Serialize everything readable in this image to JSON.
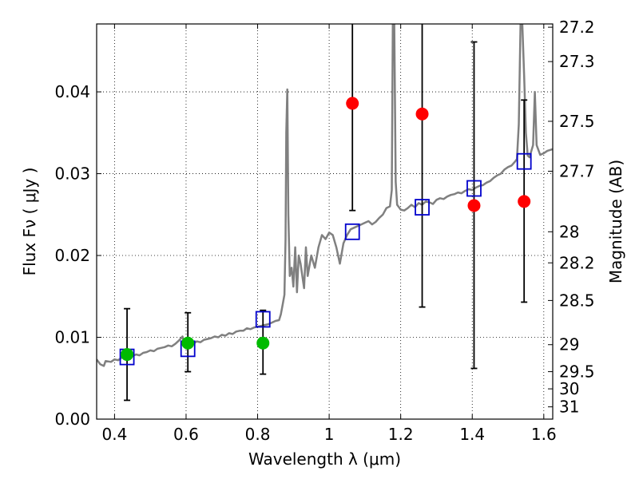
{
  "chart_data": {
    "type": "scatter",
    "xlabel": "Wavelength  λ (μm)",
    "ylabel_left": "Flux  Fν  ( μJy )",
    "ylabel_right": "Magnitude (AB)",
    "xlim": [
      0.35,
      1.625
    ],
    "ylim": [
      0.0,
      0.0483
    ],
    "x_ticks": [
      0.4,
      0.6,
      0.8,
      1.0,
      1.2,
      1.4,
      1.6
    ],
    "x_tick_labels": [
      "0.4",
      "0.6",
      "0.8",
      "1",
      "1.2",
      "1.4",
      "1.6"
    ],
    "y_ticks": [
      0.0,
      0.01,
      0.02,
      0.03,
      0.04
    ],
    "y_tick_labels": [
      "0.00",
      "0.01",
      "0.02",
      "0.03",
      "0.04"
    ],
    "right_ticks": [
      {
        "flux": 0.0479,
        "label": "27.2"
      },
      {
        "flux": 0.0437,
        "label": "27.3"
      },
      {
        "flux": 0.0364,
        "label": "27.5"
      },
      {
        "flux": 0.0303,
        "label": "27.7"
      },
      {
        "flux": 0.0229,
        "label": "28"
      },
      {
        "flux": 0.0191,
        "label": "28.2"
      },
      {
        "flux": 0.0145,
        "label": "28.5"
      },
      {
        "flux": 0.0091,
        "label": "29"
      },
      {
        "flux": 0.0058,
        "label": "29.5"
      },
      {
        "flux": 0.0037,
        "label": "30"
      },
      {
        "flux": 0.0015,
        "label": "31"
      }
    ],
    "grid": true,
    "colors": {
      "model": "#808080",
      "model_photometry": "#0000cc",
      "detections": "#00bb00",
      "upper_constraints": "#ff0000",
      "errorbars": "#000000"
    },
    "series": [
      {
        "kind": "line",
        "points": [
          [
            0.35,
            0.0073
          ],
          [
            0.36,
            0.0067
          ],
          [
            0.37,
            0.0065
          ],
          [
            0.375,
            0.0071
          ],
          [
            0.39,
            0.007
          ],
          [
            0.4,
            0.0073
          ],
          [
            0.41,
            0.0072
          ],
          [
            0.42,
            0.0075
          ],
          [
            0.43,
            0.0076
          ],
          [
            0.44,
            0.0074
          ],
          [
            0.45,
            0.0077
          ],
          [
            0.46,
            0.0079
          ],
          [
            0.47,
            0.0078
          ],
          [
            0.48,
            0.0081
          ],
          [
            0.49,
            0.0082
          ],
          [
            0.5,
            0.0084
          ],
          [
            0.51,
            0.0083
          ],
          [
            0.52,
            0.0086
          ],
          [
            0.53,
            0.0087
          ],
          [
            0.54,
            0.0088
          ],
          [
            0.55,
            0.009
          ],
          [
            0.56,
            0.0089
          ],
          [
            0.57,
            0.0092
          ],
          [
            0.58,
            0.0096
          ],
          [
            0.59,
            0.0101
          ],
          [
            0.595,
            0.0091
          ],
          [
            0.6,
            0.009
          ],
          [
            0.61,
            0.0093
          ],
          [
            0.62,
            0.0092
          ],
          [
            0.63,
            0.0095
          ],
          [
            0.64,
            0.0094
          ],
          [
            0.65,
            0.0097
          ],
          [
            0.66,
            0.0098
          ],
          [
            0.67,
            0.0099
          ],
          [
            0.68,
            0.0101
          ],
          [
            0.69,
            0.01
          ],
          [
            0.7,
            0.0103
          ],
          [
            0.71,
            0.0102
          ],
          [
            0.72,
            0.0105
          ],
          [
            0.73,
            0.0104
          ],
          [
            0.74,
            0.0107
          ],
          [
            0.75,
            0.0108
          ],
          [
            0.76,
            0.0108
          ],
          [
            0.77,
            0.0111
          ],
          [
            0.78,
            0.011
          ],
          [
            0.79,
            0.0112
          ],
          [
            0.8,
            0.0113
          ],
          [
            0.81,
            0.0114
          ],
          [
            0.82,
            0.0115
          ],
          [
            0.83,
            0.0116
          ],
          [
            0.84,
            0.0118
          ],
          [
            0.85,
            0.012
          ],
          [
            0.86,
            0.0121
          ],
          [
            0.865,
            0.0128
          ],
          [
            0.87,
            0.014
          ],
          [
            0.875,
            0.0152
          ],
          [
            0.878,
            0.022
          ],
          [
            0.88,
            0.035
          ],
          [
            0.883,
            0.0403
          ],
          [
            0.886,
            0.025
          ],
          [
            0.89,
            0.0175
          ],
          [
            0.895,
            0.0185
          ],
          [
            0.9,
            0.0162
          ],
          [
            0.905,
            0.021
          ],
          [
            0.91,
            0.0155
          ],
          [
            0.915,
            0.02
          ],
          [
            0.92,
            0.019
          ],
          [
            0.93,
            0.016
          ],
          [
            0.935,
            0.021
          ],
          [
            0.94,
            0.0175
          ],
          [
            0.95,
            0.02
          ],
          [
            0.96,
            0.0185
          ],
          [
            0.97,
            0.021
          ],
          [
            0.98,
            0.0225
          ],
          [
            0.99,
            0.022
          ],
          [
            1.0,
            0.0228
          ],
          [
            1.01,
            0.0225
          ],
          [
            1.02,
            0.021
          ],
          [
            1.03,
            0.019
          ],
          [
            1.04,
            0.0215
          ],
          [
            1.05,
            0.0225
          ],
          [
            1.06,
            0.0232
          ],
          [
            1.07,
            0.0234
          ],
          [
            1.08,
            0.0236
          ],
          [
            1.09,
            0.0238
          ],
          [
            1.1,
            0.024
          ],
          [
            1.11,
            0.0242
          ],
          [
            1.12,
            0.0238
          ],
          [
            1.13,
            0.0241
          ],
          [
            1.14,
            0.0246
          ],
          [
            1.15,
            0.025
          ],
          [
            1.16,
            0.0258
          ],
          [
            1.17,
            0.026
          ],
          [
            1.175,
            0.028
          ],
          [
            1.178,
            0.0483
          ],
          [
            1.182,
            0.0483
          ],
          [
            1.186,
            0.029
          ],
          [
            1.19,
            0.0262
          ],
          [
            1.2,
            0.0256
          ],
          [
            1.21,
            0.0255
          ],
          [
            1.22,
            0.0258
          ],
          [
            1.23,
            0.0262
          ],
          [
            1.24,
            0.0259
          ],
          [
            1.25,
            0.0264
          ],
          [
            1.26,
            0.0262
          ],
          [
            1.27,
            0.0266
          ],
          [
            1.28,
            0.0265
          ],
          [
            1.29,
            0.0263
          ],
          [
            1.3,
            0.0268
          ],
          [
            1.31,
            0.027
          ],
          [
            1.32,
            0.0269
          ],
          [
            1.33,
            0.0272
          ],
          [
            1.34,
            0.0274
          ],
          [
            1.35,
            0.0275
          ],
          [
            1.36,
            0.0277
          ],
          [
            1.37,
            0.0276
          ],
          [
            1.38,
            0.0279
          ],
          [
            1.39,
            0.0281
          ],
          [
            1.4,
            0.028
          ],
          [
            1.41,
            0.0283
          ],
          [
            1.42,
            0.0285
          ],
          [
            1.43,
            0.0286
          ],
          [
            1.44,
            0.0289
          ],
          [
            1.45,
            0.0291
          ],
          [
            1.46,
            0.0295
          ],
          [
            1.47,
            0.0298
          ],
          [
            1.48,
            0.03
          ],
          [
            1.49,
            0.0305
          ],
          [
            1.5,
            0.0308
          ],
          [
            1.51,
            0.031
          ],
          [
            1.52,
            0.0315
          ],
          [
            1.525,
            0.0318
          ],
          [
            1.53,
            0.036
          ],
          [
            1.535,
            0.0483
          ],
          [
            1.54,
            0.0483
          ],
          [
            1.545,
            0.042
          ],
          [
            1.55,
            0.035
          ],
          [
            1.555,
            0.0322
          ],
          [
            1.56,
            0.032
          ],
          [
            1.57,
            0.0335
          ],
          [
            1.575,
            0.04
          ],
          [
            1.58,
            0.0335
          ],
          [
            1.59,
            0.0323
          ],
          [
            1.6,
            0.0325
          ],
          [
            1.61,
            0.0328
          ],
          [
            1.625,
            0.033
          ]
        ]
      },
      {
        "kind": "open-square",
        "x": [
          0.435,
          0.605,
          0.815,
          1.065,
          1.26,
          1.405,
          1.545
        ],
        "y": [
          0.0076,
          0.0086,
          0.0122,
          0.0229,
          0.0259,
          0.0282,
          0.0315
        ]
      },
      {
        "kind": "filled-circle",
        "x": [
          0.435,
          0.605,
          0.815
        ],
        "y": [
          0.0079,
          0.0093,
          0.0093
        ],
        "yerr_low": [
          0.0023,
          0.0058,
          0.0055
        ],
        "yerr_high": [
          0.0135,
          0.013,
          0.0133
        ]
      },
      {
        "kind": "filled-circle",
        "x": [
          1.065,
          1.26,
          1.405,
          1.545
        ],
        "y": [
          0.0386,
          0.0373,
          0.0261,
          0.0266
        ],
        "yerr_low": [
          0.0255,
          0.0137,
          0.0062,
          0.0143
        ],
        "yerr_high": [
          0.0483,
          0.0483,
          0.0461,
          0.039
        ]
      }
    ]
  }
}
